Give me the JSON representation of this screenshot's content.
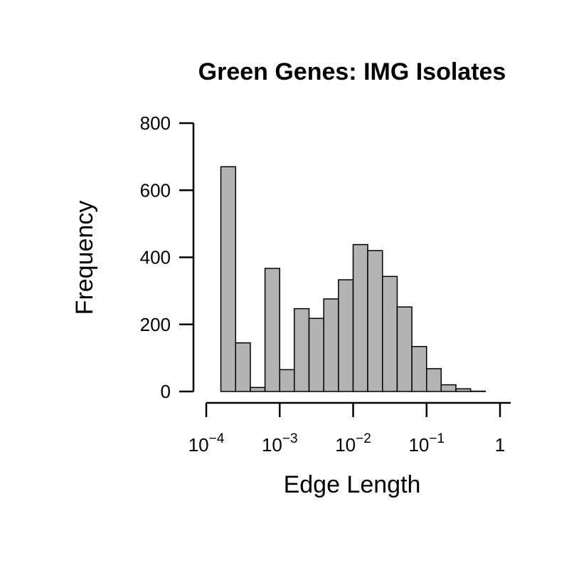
{
  "chart_data": {
    "type": "bar",
    "title": "Green Genes: IMG Isolates",
    "xlabel": "Edge Length",
    "ylabel": "Frequency",
    "x_scale": "log10",
    "xlim": [
      0.0001,
      1
    ],
    "ylim": [
      0,
      800
    ],
    "grid": false,
    "legend": "none",
    "colors": {
      "bar_fill": "#b3b3b3",
      "bar_stroke": "#000000",
      "axis": "#000000"
    },
    "y_ticks": [
      {
        "value": 0,
        "label": "0"
      },
      {
        "value": 200,
        "label": "200"
      },
      {
        "value": 400,
        "label": "400"
      },
      {
        "value": 600,
        "label": "600"
      },
      {
        "value": 800,
        "label": "800"
      }
    ],
    "x_ticks": [
      {
        "value": 0.0001,
        "base": "10",
        "exp": "−4",
        "label": ""
      },
      {
        "value": 0.001,
        "base": "10",
        "exp": "−3",
        "label": ""
      },
      {
        "value": 0.01,
        "base": "10",
        "exp": "−2",
        "label": ""
      },
      {
        "value": 0.1,
        "base": "10",
        "exp": "−1",
        "label": ""
      },
      {
        "value": 1,
        "base": "",
        "exp": "",
        "label": "1"
      }
    ],
    "bins": [
      {
        "x0": 0.000158,
        "x1": 0.000251,
        "count": 670
      },
      {
        "x0": 0.000251,
        "x1": 0.000398,
        "count": 145
      },
      {
        "x0": 0.000398,
        "x1": 0.000631,
        "count": 12
      },
      {
        "x0": 0.000631,
        "x1": 0.001,
        "count": 367
      },
      {
        "x0": 0.001,
        "x1": 0.00158,
        "count": 65
      },
      {
        "x0": 0.00158,
        "x1": 0.00251,
        "count": 247
      },
      {
        "x0": 0.00251,
        "x1": 0.00398,
        "count": 218
      },
      {
        "x0": 0.00398,
        "x1": 0.00631,
        "count": 276
      },
      {
        "x0": 0.00631,
        "x1": 0.01,
        "count": 333
      },
      {
        "x0": 0.01,
        "x1": 0.0158,
        "count": 438
      },
      {
        "x0": 0.0158,
        "x1": 0.0251,
        "count": 420
      },
      {
        "x0": 0.0251,
        "x1": 0.0398,
        "count": 343
      },
      {
        "x0": 0.0398,
        "x1": 0.0631,
        "count": 252
      },
      {
        "x0": 0.0631,
        "x1": 0.1,
        "count": 134
      },
      {
        "x0": 0.1,
        "x1": 0.158,
        "count": 68
      },
      {
        "x0": 0.158,
        "x1": 0.251,
        "count": 20
      },
      {
        "x0": 0.251,
        "x1": 0.398,
        "count": 8
      },
      {
        "x0": 0.398,
        "x1": 0.631,
        "count": 1
      }
    ]
  }
}
